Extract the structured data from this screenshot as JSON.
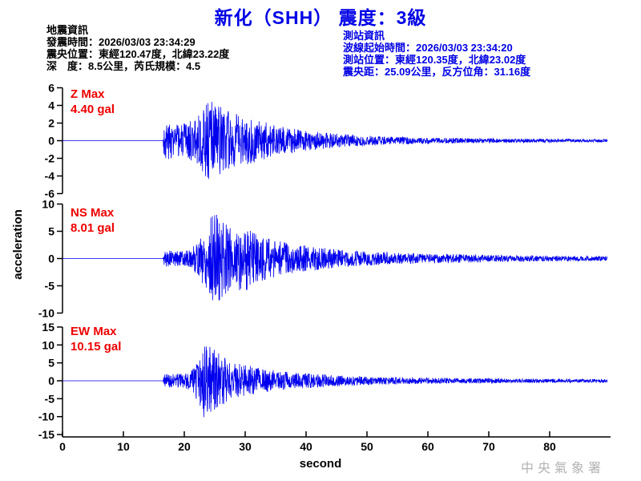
{
  "title": "新化（SHH） 震度：3級",
  "earthquake_info": {
    "lines": [
      "地震資訊",
      "發震時間：2026/03/03 23:34:29",
      "震央位置：東經120.47度，北緯23.22度",
      "深　度：8.5公里，芮氏規模：4.5"
    ]
  },
  "station_info": {
    "lines": [
      "測站資訊",
      "波線起始時間：2026/03/03 23:34:20",
      "測站位置：東經120.35度，北緯23.02度",
      "震央距：25.09公里，反方位角：31.16度"
    ]
  },
  "watermark": "中央氣象署",
  "colors": {
    "trace_blue": "#0000ee",
    "info_blue": "#0000e6",
    "label_red": "#ee0000",
    "axis_black": "#000000",
    "watermark_gray": "#b3b3b3"
  },
  "chart_data": {
    "type": "line",
    "subtype": "seismogram-3-component",
    "station": "SHH",
    "station_name": "新化",
    "intensity": "3級",
    "xlabel": "second",
    "ylabel": "acceleration",
    "x_ticks": [
      0,
      10,
      20,
      30,
      40,
      50,
      60,
      70,
      80
    ],
    "x_range": [
      0,
      90
    ],
    "trace_end_s": 89.5,
    "wave_onset_s": 16.5,
    "grid": false,
    "channels": [
      {
        "name": "Z",
        "label": "Z Max",
        "max_label": "4.40 gal",
        "max_gal": 4.4,
        "ylim": [
          -6,
          6
        ],
        "y_ticks": [
          6,
          4,
          2,
          0,
          -2,
          -4,
          -6
        ],
        "seed": 3,
        "envelope_t_gal": [
          [
            16.5,
            0
          ],
          [
            16.7,
            2.3
          ],
          [
            18,
            1.7
          ],
          [
            20,
            1.8
          ],
          [
            22,
            2.3
          ],
          [
            23.5,
            3.8
          ],
          [
            24.5,
            4.4
          ],
          [
            25.5,
            4.2
          ],
          [
            27,
            3.2
          ],
          [
            29,
            2.7
          ],
          [
            31,
            2.4
          ],
          [
            33,
            2.0
          ],
          [
            36,
            1.5
          ],
          [
            40,
            1.05
          ],
          [
            44,
            0.8
          ],
          [
            48,
            0.6
          ],
          [
            53,
            0.45
          ],
          [
            58,
            0.35
          ],
          [
            65,
            0.28
          ],
          [
            72,
            0.22
          ],
          [
            80,
            0.18
          ],
          [
            89.5,
            0.15
          ]
        ]
      },
      {
        "name": "NS",
        "label": "NS Max",
        "max_label": "8.01 gal",
        "max_gal": 8.01,
        "ylim": [
          -10,
          10
        ],
        "y_ticks": [
          10,
          5,
          0,
          -5,
          -10
        ],
        "seed": 5,
        "envelope_t_gal": [
          [
            16.5,
            0
          ],
          [
            16.7,
            1.4
          ],
          [
            19,
            1.25
          ],
          [
            21,
            1.6
          ],
          [
            22.5,
            3.2
          ],
          [
            24,
            6.5
          ],
          [
            25,
            8.0
          ],
          [
            26.5,
            6.2
          ],
          [
            28,
            5.2
          ],
          [
            30,
            5.6
          ],
          [
            32,
            4.2
          ],
          [
            34,
            3.4
          ],
          [
            37,
            2.7
          ],
          [
            40,
            2.2
          ],
          [
            43,
            1.8
          ],
          [
            47,
            1.4
          ],
          [
            52,
            1.1
          ],
          [
            58,
            0.9
          ],
          [
            65,
            0.72
          ],
          [
            72,
            0.58
          ],
          [
            80,
            0.48
          ],
          [
            89.5,
            0.4
          ]
        ]
      },
      {
        "name": "EW",
        "label": "EW Max",
        "max_label": "10.15 gal",
        "max_gal": 10.15,
        "ylim": [
          -15,
          15
        ],
        "y_ticks": [
          15,
          10,
          5,
          0,
          -5,
          -10,
          -15
        ],
        "seed": 9,
        "envelope_t_gal": [
          [
            16.5,
            0
          ],
          [
            16.7,
            1.9
          ],
          [
            19,
            1.8
          ],
          [
            21,
            2.3
          ],
          [
            22.3,
            5.5
          ],
          [
            23.3,
            10.1
          ],
          [
            24.5,
            8.6
          ],
          [
            26,
            6.6
          ],
          [
            28,
            4.6
          ],
          [
            30,
            4.1
          ],
          [
            32,
            3.4
          ],
          [
            35,
            2.6
          ],
          [
            38,
            2.1
          ],
          [
            42,
            1.7
          ],
          [
            46,
            1.35
          ],
          [
            51,
            1.05
          ],
          [
            57,
            0.85
          ],
          [
            63,
            0.72
          ],
          [
            70,
            0.6
          ],
          [
            80,
            0.5
          ],
          [
            89.5,
            0.42
          ]
        ]
      }
    ]
  }
}
